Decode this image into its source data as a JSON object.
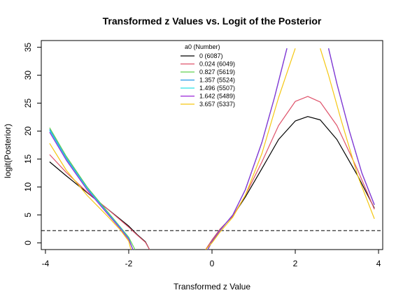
{
  "chart_data": {
    "type": "line",
    "title": "Transformed z Values vs. Logit of the Posterior",
    "xlabel": "Transformed z Value",
    "ylabel": "logit(Posterior)",
    "xlim": [
      -4.1,
      4.1
    ],
    "ylim": [
      -1.2,
      36.2
    ],
    "xticks": [
      -4,
      -2,
      0,
      2,
      4
    ],
    "yticks": [
      0,
      5,
      10,
      15,
      20,
      25,
      30,
      35
    ],
    "hline": 2.2,
    "legend": {
      "title": "a0 (Number)",
      "position": "top-center"
    },
    "series": [
      {
        "name": "0 (6087)",
        "color": "#000000",
        "segments": [
          {
            "x": [
              -3.9,
              -3.5,
              -3.0,
              -2.5,
              -2.0,
              -1.8,
              -1.6,
              -1.5
            ],
            "y": [
              14.5,
              12.0,
              9.0,
              6.0,
              3.0,
              1.5,
              0.2,
              -1.2
            ]
          },
          {
            "x": [
              -0.15,
              0.0,
              0.2,
              0.5,
              0.8,
              1.2,
              1.6,
              2.0,
              2.3,
              2.6,
              3.0,
              3.5,
              3.9
            ],
            "y": [
              -1.2,
              0.5,
              2.5,
              4.8,
              8.2,
              13.3,
              18.5,
              21.8,
              22.6,
              22.0,
              18.5,
              12.0,
              6.2
            ]
          }
        ]
      },
      {
        "name": "0.024 (6049)",
        "color": "#DF536B",
        "segments": [
          {
            "x": [
              -3.9,
              -3.5,
              -3.0,
              -2.5,
              -2.0,
              -1.8,
              -1.6,
              -1.5
            ],
            "y": [
              15.8,
              12.6,
              9.1,
              6.0,
              2.8,
              1.4,
              0.1,
              -1.2
            ]
          },
          {
            "x": [
              -0.15,
              0.0,
              0.2,
              0.5,
              0.8,
              1.2,
              1.6,
              2.0,
              2.3,
              2.6,
              3.0,
              3.5,
              3.9
            ],
            "y": [
              -1.2,
              0.5,
              2.5,
              4.8,
              8.5,
              14.5,
              21.0,
              25.3,
              26.2,
              25.2,
              21.0,
              13.0,
              6.0
            ]
          }
        ]
      },
      {
        "name": "0.827 (5619)",
        "color": "#61D04F",
        "segments": [
          {
            "x": [
              -3.9,
              -3.5,
              -3.0,
              -2.5,
              -2.2,
              -2.0,
              -1.85
            ],
            "y": [
              20.6,
              15.5,
              10.0,
              5.5,
              2.8,
              1.0,
              -1.2
            ]
          },
          {
            "x": [
              -0.1,
              0.0,
              0.2,
              0.5,
              0.8,
              1.2,
              1.5,
              1.8
            ],
            "y": [
              -1.2,
              0.2,
              2.3,
              5.0,
              9.5,
              18.0,
              26.0,
              34.8
            ]
          },
          {
            "x": [
              2.8,
              3.0,
              3.3,
              3.6,
              3.9
            ],
            "y": [
              34.8,
              28.5,
              20.0,
              12.5,
              6.8
            ]
          }
        ]
      },
      {
        "name": "1.357 (5524)",
        "color": "#2297E6",
        "segments": [
          {
            "x": [
              -3.9,
              -3.5,
              -3.0,
              -2.5,
              -2.2,
              -2.0,
              -1.9
            ],
            "y": [
              20.3,
              15.2,
              9.8,
              5.3,
              2.7,
              0.8,
              -1.2
            ]
          },
          {
            "x": [
              -0.1,
              0.0,
              0.2,
              0.5,
              0.8,
              1.2,
              1.5,
              1.8
            ],
            "y": [
              -1.2,
              0.2,
              2.3,
              5.0,
              9.5,
              18.0,
              26.0,
              34.8
            ]
          },
          {
            "x": [
              2.8,
              3.0,
              3.3,
              3.6,
              3.9
            ],
            "y": [
              34.8,
              28.5,
              20.0,
              12.5,
              6.8
            ]
          }
        ]
      },
      {
        "name": "1.496 (5507)",
        "color": "#28E2E5",
        "segments": [
          {
            "x": [
              -3.9,
              -3.5,
              -3.0,
              -2.5,
              -2.2,
              -2.0,
              -1.9
            ],
            "y": [
              20.1,
              15.0,
              9.7,
              5.2,
              2.6,
              0.7,
              -1.2
            ]
          },
          {
            "x": [
              -0.1,
              0.0,
              0.2,
              0.5,
              0.8,
              1.2,
              1.5,
              1.8
            ],
            "y": [
              -1.2,
              0.2,
              2.3,
              5.0,
              9.5,
              18.0,
              26.0,
              34.8
            ]
          },
          {
            "x": [
              2.8,
              3.0,
              3.3,
              3.6,
              3.9
            ],
            "y": [
              34.8,
              28.5,
              20.0,
              12.5,
              6.8
            ]
          }
        ]
      },
      {
        "name": "1.642 (5489)",
        "color": "#9A26D8",
        "segments": [
          {
            "x": [
              -3.9,
              -3.5,
              -3.0,
              -2.5,
              -2.2,
              -2.0,
              -1.9
            ],
            "y": [
              19.8,
              14.8,
              9.5,
              5.1,
              2.5,
              0.6,
              -1.2
            ]
          },
          {
            "x": [
              -0.1,
              0.0,
              0.2,
              0.5,
              0.8,
              1.2,
              1.5,
              1.8
            ],
            "y": [
              -1.2,
              0.2,
              2.3,
              5.0,
              9.5,
              18.0,
              26.0,
              34.8
            ]
          },
          {
            "x": [
              2.8,
              3.0,
              3.3,
              3.6,
              3.9
            ],
            "y": [
              34.8,
              28.5,
              20.0,
              12.5,
              6.8
            ]
          }
        ]
      },
      {
        "name": "3.657 (5337)",
        "color": "#F5C710",
        "segments": [
          {
            "x": [
              -3.9,
              -3.5,
              -3.0,
              -2.5,
              -2.2,
              -2.0,
              -1.95
            ],
            "y": [
              17.8,
              13.0,
              8.5,
              4.7,
              2.3,
              0.3,
              -1.2
            ]
          },
          {
            "x": [
              -0.15,
              0.0,
              0.2,
              0.5,
              0.8,
              1.2,
              1.6,
              2.0
            ],
            "y": [
              -1.2,
              0.0,
              2.0,
              4.6,
              8.5,
              16.0,
              26.0,
              34.8
            ]
          },
          {
            "x": [
              2.6,
              2.8,
              3.1,
              3.5,
              3.9
            ],
            "y": [
              34.8,
              30.0,
              22.0,
              12.0,
              4.3
            ]
          }
        ]
      }
    ]
  }
}
